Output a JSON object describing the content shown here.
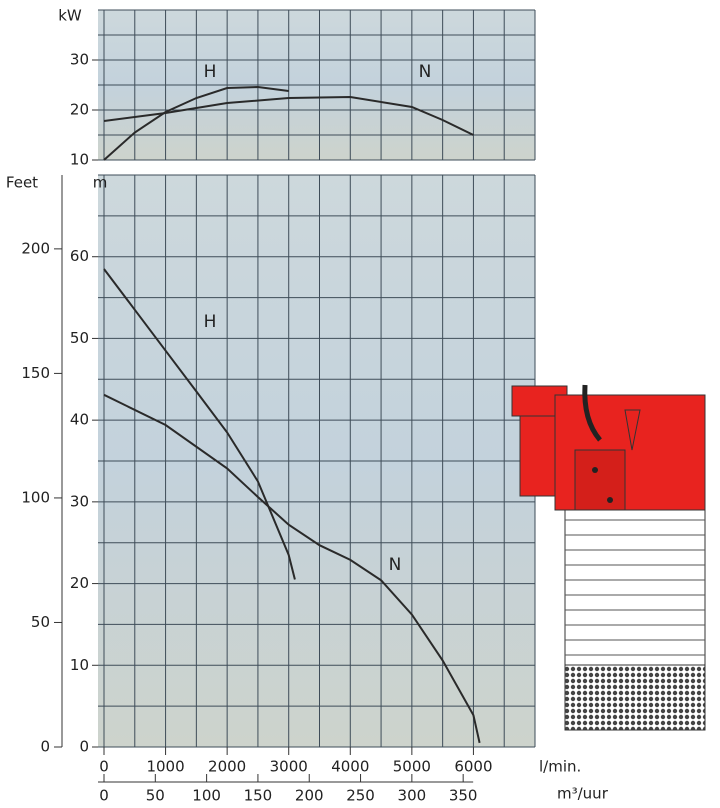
{
  "chart_data": [
    {
      "type": "line",
      "y_label": "kW",
      "xlim": [
        0,
        7000
      ],
      "ylim": [
        10,
        40
      ],
      "yticks": [
        10,
        20,
        30
      ],
      "grid": true,
      "xgrid": [
        0,
        500,
        1000,
        1500,
        2000,
        2500,
        3000,
        3500,
        4000,
        4500,
        5000,
        5500,
        6000,
        6500,
        7000
      ],
      "ygrid": [
        10,
        15,
        20,
        25,
        30,
        35,
        40
      ],
      "series": [
        {
          "name": "H",
          "color": "#2a2a2a",
          "x": [
            0,
            500,
            1000,
            1500,
            2000,
            2500,
            3000
          ],
          "values": [
            10,
            15.5,
            19.6,
            22.4,
            24.4,
            24.6,
            23.8
          ]
        },
        {
          "name": "N",
          "color": "#2a2a2a",
          "x": [
            0,
            1000,
            2000,
            3000,
            4000,
            5000,
            5500,
            6000
          ],
          "values": [
            17.8,
            19.4,
            21.4,
            22.4,
            22.6,
            20.6,
            18,
            15
          ]
        }
      ]
    },
    {
      "type": "line",
      "y_label": "m",
      "y2_label": "Feet",
      "x_label": "l/min.",
      "x2_label": "m³/uur",
      "xlim": [
        0,
        7000
      ],
      "xticks": [
        0,
        1000,
        2000,
        3000,
        4000,
        5000,
        6000
      ],
      "x2lim": [
        0,
        420
      ],
      "x2ticks": [
        0,
        50,
        100,
        150,
        200,
        250,
        300,
        350
      ],
      "ylim": [
        0,
        70
      ],
      "yticks": [
        0,
        10,
        20,
        30,
        40,
        50,
        60
      ],
      "y2lim": [
        0,
        229.66
      ],
      "y2ticks": [
        0,
        50,
        100,
        150,
        200
      ],
      "grid": true,
      "xgrid": [
        0,
        500,
        1000,
        1500,
        2000,
        2500,
        3000,
        3500,
        4000,
        4500,
        5000,
        5500,
        6000,
        6500,
        7000
      ],
      "ygrid": [
        0,
        5,
        10,
        15,
        20,
        25,
        30,
        35,
        40,
        45,
        50,
        55,
        60,
        65,
        70
      ],
      "series": [
        {
          "name": "H",
          "color": "#2a2a2a",
          "x": [
            0,
            500,
            1000,
            1500,
            2000,
            2500,
            3000,
            3100
          ],
          "values": [
            58.5,
            53.5,
            48.5,
            43.5,
            38.5,
            32.5,
            23.5,
            20.5
          ]
        },
        {
          "name": "N",
          "color": "#2a2a2a",
          "x": [
            0,
            1000,
            2000,
            2500,
            3000,
            3500,
            4000,
            4500,
            5000,
            5500,
            6000,
            6100
          ],
          "values": [
            43.1,
            39.4,
            34.1,
            30.6,
            27.2,
            24.7,
            22.9,
            20.4,
            16.2,
            10.6,
            3.9,
            0.5
          ]
        }
      ]
    }
  ]
}
